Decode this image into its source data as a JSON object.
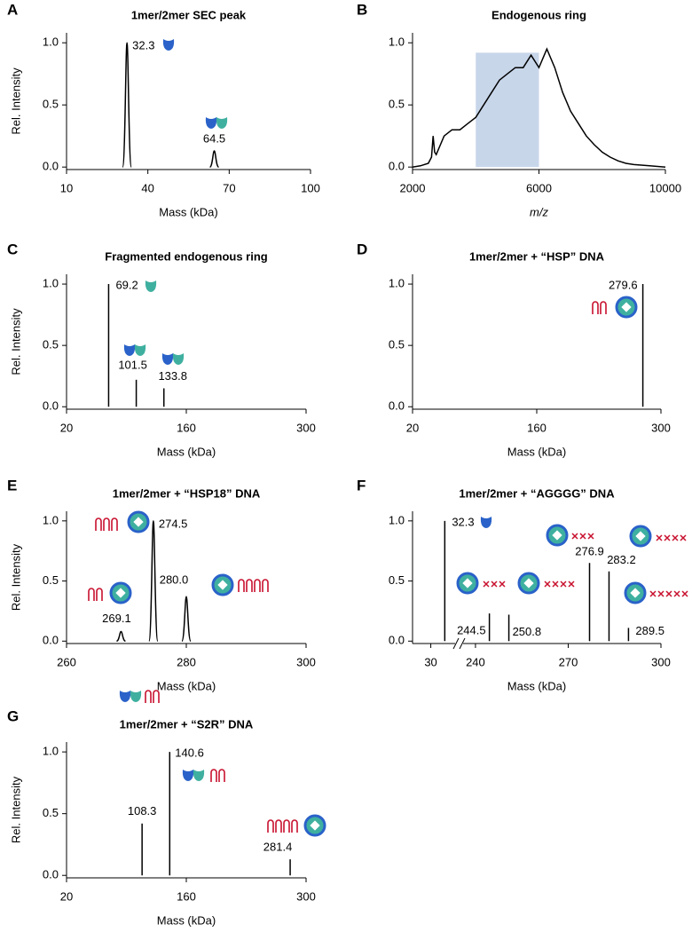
{
  "chart_data": [
    {
      "type": "spectrum",
      "panel": "A",
      "title": "1mer/2mer SEC peak",
      "xlabel": "Mass (kDa)",
      "ylabel": "Rel. Intensity",
      "x": [
        32.3,
        64.5
      ],
      "values": [
        1.0,
        0.13
      ],
      "labels": [
        "32.3",
        "64.5"
      ],
      "color": "#000000",
      "xlim": [
        10,
        100
      ],
      "xticks": [
        10,
        40,
        70,
        100
      ],
      "ylim": [
        -0.02,
        1.08
      ],
      "yticks": [
        {
          "value": 0,
          "label": "0.0"
        },
        0.5,
        {
          "value": 1,
          "label": "1.0"
        }
      ]
    },
    {
      "type": "line",
      "panel": "B",
      "title": "Endogenous ring",
      "xlabel": "m/z",
      "xlabel_italic": true,
      "x": [
        2000,
        2250,
        2500,
        2600,
        2650,
        2700,
        2750,
        3000,
        3250,
        3500,
        3750,
        4000,
        4250,
        4500,
        4750,
        5000,
        5250,
        5500,
        5750,
        6000,
        6250,
        6500,
        6750,
        7000,
        7250,
        7500,
        7750,
        8000,
        8250,
        8500,
        8750,
        9000,
        9500,
        10000
      ],
      "values": [
        0,
        0.01,
        0.03,
        0.08,
        0.25,
        0.12,
        0.1,
        0.25,
        0.3,
        0.3,
        0.35,
        0.4,
        0.5,
        0.6,
        0.7,
        0.75,
        0.8,
        0.8,
        0.9,
        0.8,
        0.95,
        0.8,
        0.6,
        0.45,
        0.35,
        0.25,
        0.18,
        0.12,
        0.08,
        0.05,
        0.03,
        0.02,
        0.01,
        0
      ],
      "color": "#000000",
      "highlight": {
        "x": [
          4000,
          6000
        ],
        "top": 0.92,
        "color": "#c8d6ea"
      },
      "xlim": [
        2000,
        10000
      ],
      "xticks": [
        2000,
        6000,
        10000
      ],
      "ylim": [
        -0.02,
        1.08
      ],
      "yticks": [
        {
          "value": 0,
          "label": "0.0"
        },
        0.5,
        {
          "value": 1,
          "label": "1.0"
        }
      ]
    },
    {
      "type": "spectrum",
      "panel": "C",
      "title": "Fragmented endogenous ring",
      "xlabel": "Mass (kDa)",
      "ylabel": "Rel. Intensity",
      "x": [
        69.2,
        101.5,
        133.8
      ],
      "values": [
        1.0,
        0.22,
        0.15
      ],
      "labels": [
        "69.2",
        "101.5",
        "133.8"
      ],
      "color": "#000000",
      "xlim": [
        20,
        300
      ],
      "xticks": [
        20,
        160,
        300
      ],
      "ylim": [
        -0.02,
        1.08
      ],
      "yticks": [
        {
          "value": 0,
          "label": "0.0"
        },
        0.5,
        {
          "value": 1,
          "label": "1.0"
        }
      ]
    },
    {
      "type": "spectrum",
      "panel": "D",
      "title": "1mer/2mer + “HSP” DNA",
      "xlabel": "Mass (kDa)",
      "x": [
        279.6
      ],
      "values": [
        1.0
      ],
      "labels": [
        "279.6"
      ],
      "color": "#000000",
      "xlim": [
        20,
        300
      ],
      "xticks": [
        20,
        160,
        300
      ],
      "ylim": [
        -0.02,
        1.08
      ],
      "yticks": [
        {
          "value": 0,
          "label": "0.0"
        },
        0.5,
        {
          "value": 1,
          "label": "1.0"
        }
      ]
    },
    {
      "type": "spectrum",
      "panel": "E",
      "title": "1mer/2mer + “HSP18” DNA",
      "xlabel": "Mass (kDa)",
      "ylabel": "Rel. Intensity",
      "x": [
        269.1,
        274.5,
        280.0
      ],
      "values": [
        0.08,
        1.0,
        0.37
      ],
      "labels": [
        "269.1",
        "274.5",
        "280.0"
      ],
      "color": "#000000",
      "xlim": [
        260,
        300
      ],
      "xticks": [
        260,
        280,
        300
      ],
      "ylim": [
        -0.02,
        1.08
      ],
      "yticks": [
        {
          "value": 0,
          "label": "0.0"
        },
        0.5,
        {
          "value": 1,
          "label": "1.0"
        }
      ]
    },
    {
      "type": "spectrum",
      "panel": "F",
      "title": "1mer/2mer + “AGGGG” DNA",
      "xlabel": "Mass (kDa)",
      "x": [
        32.3,
        244.5,
        250.8,
        276.9,
        283.2,
        289.5
      ],
      "values": [
        1.0,
        0.23,
        0.22,
        0.65,
        0.58,
        0.11
      ],
      "labels": [
        "32.3",
        "244.5",
        "250.8",
        "276.9",
        "283.2",
        "289.5"
      ],
      "color": "#000000",
      "xlim": [
        27,
        300
      ],
      "xbreak": [
        34,
        236
      ],
      "xticks": [
        30,
        240,
        270,
        300
      ],
      "ylim": [
        -0.02,
        1.08
      ],
      "yticks": [
        {
          "value": 0,
          "label": "0.0"
        },
        0.5,
        {
          "value": 1,
          "label": "1.0"
        }
      ]
    },
    {
      "type": "spectrum",
      "panel": "G",
      "title": "1mer/2mer + “S2R” DNA",
      "xlabel": "Mass (kDa)",
      "ylabel": "Rel. Intensity",
      "x": [
        108.3,
        140.6,
        281.4
      ],
      "values": [
        0.42,
        1.0,
        0.13
      ],
      "labels": [
        "108.3",
        "140.6",
        "281.4"
      ],
      "color": "#000000",
      "xlim": [
        20,
        300
      ],
      "xticks": [
        20,
        160,
        300
      ],
      "ylim": [
        -0.02,
        1.08
      ],
      "yticks": [
        {
          "value": 0,
          "label": "0.0"
        },
        0.5,
        {
          "value": 1,
          "label": "1.0"
        }
      ]
    }
  ]
}
